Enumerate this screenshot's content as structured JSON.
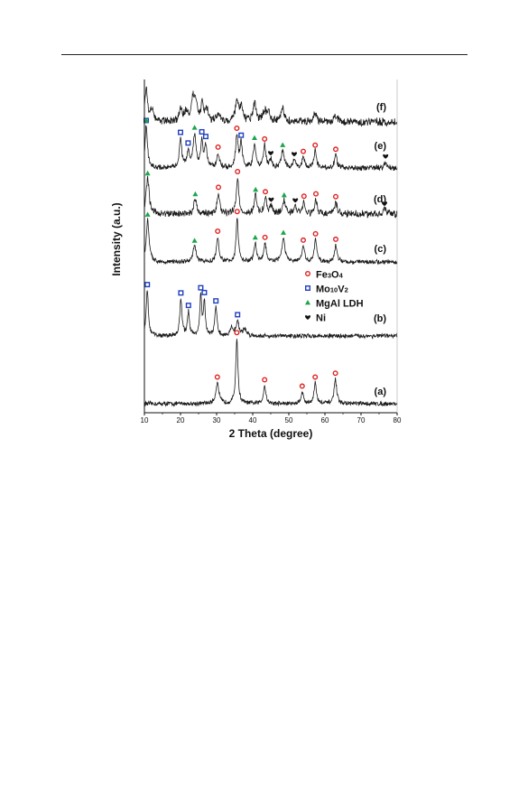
{
  "chart_data": {
    "type": "line",
    "xlabel": "2 Theta (degree)",
    "ylabel": "Intensity (a.u.)",
    "xlim": [
      10,
      80
    ],
    "xticks": [
      10,
      20,
      30,
      40,
      50,
      60,
      70,
      80
    ],
    "grid": false,
    "legend": {
      "placement": "right-middle",
      "entries": [
        {
          "key": "fe3o4",
          "parts": [
            [
              "Fe",
              ""
            ],
            [
              "3",
              "sub"
            ],
            [
              "O",
              ""
            ],
            [
              "4",
              "sub"
            ]
          ],
          "marker": "circle",
          "color": "#e02020"
        },
        {
          "key": "mo10v2",
          "parts": [
            [
              "Mo",
              ""
            ],
            [
              "10",
              "sub"
            ],
            [
              "V",
              ""
            ],
            [
              "2",
              "sub"
            ]
          ],
          "marker": "square",
          "color": "#1f3fbf"
        },
        {
          "key": "mgal",
          "parts": [
            [
              "MgAl LDH",
              ""
            ]
          ],
          "marker": "triangle",
          "color": "#1aa64a"
        },
        {
          "key": "ni",
          "parts": [
            [
              "Ni",
              ""
            ]
          ],
          "marker": "heart",
          "color": "#111111"
        }
      ]
    },
    "series": [
      {
        "name": "(a)",
        "noise": 1.5,
        "peaks": [
          [
            30.2,
            16,
            0.5
          ],
          [
            35.6,
            50,
            0.35
          ],
          [
            43.3,
            14,
            0.4
          ],
          [
            53.7,
            9,
            0.4
          ],
          [
            57.3,
            16,
            0.4
          ],
          [
            62.9,
            19,
            0.4
          ]
        ],
        "markers": [
          {
            "type": "fe3o4",
            "x": [
              30.2,
              35.6,
              43.3,
              53.7,
              57.3,
              62.9
            ]
          }
        ]
      },
      {
        "name": "(b)",
        "noise": 1.5,
        "peaks": [
          [
            10.8,
            35,
            0.35
          ],
          [
            20.1,
            28,
            0.35
          ],
          [
            22.2,
            18,
            0.35
          ],
          [
            25.6,
            30,
            0.3
          ],
          [
            26.6,
            26,
            0.3
          ],
          [
            29.8,
            22,
            0.35
          ],
          [
            34.2,
            6,
            0.5
          ],
          [
            35.8,
            11,
            0.45
          ],
          [
            37.8,
            5,
            0.6
          ]
        ],
        "markers": [
          {
            "type": "mo10v2",
            "x": [
              10.8,
              20.1,
              22.2,
              25.6,
              26.6,
              29.8,
              35.8
            ]
          }
        ]
      },
      {
        "name": "(c)",
        "noise": 1.5,
        "peaks": [
          [
            10.9,
            32,
            0.45
          ],
          [
            23.9,
            12,
            0.5
          ],
          [
            30.3,
            19,
            0.4
          ],
          [
            35.7,
            34,
            0.35
          ],
          [
            40.7,
            14,
            0.4
          ],
          [
            43.4,
            14,
            0.4
          ],
          [
            48.5,
            18,
            0.5
          ],
          [
            54.0,
            12,
            0.4
          ],
          [
            57.4,
            17,
            0.4
          ],
          [
            63.0,
            13,
            0.4
          ]
        ],
        "markers": [
          {
            "type": "mgal",
            "x": [
              10.9,
              23.9,
              40.7,
              48.5
            ]
          },
          {
            "type": "fe3o4",
            "x": [
              30.3,
              35.7,
              43.4,
              54.0,
              57.4,
              63.0
            ]
          }
        ]
      },
      {
        "name": "(d)",
        "noise": 2.3,
        "peaks": [
          [
            10.9,
            27,
            0.5
          ],
          [
            24.1,
            11,
            0.5
          ],
          [
            30.5,
            16,
            0.4
          ],
          [
            35.8,
            28,
            0.4
          ],
          [
            40.8,
            14,
            0.4
          ],
          [
            43.5,
            12,
            0.4
          ],
          [
            45.1,
            6,
            0.4
          ],
          [
            48.7,
            10,
            0.5
          ],
          [
            51.8,
            6,
            0.4
          ],
          [
            54.2,
            9,
            0.4
          ],
          [
            57.5,
            11,
            0.4
          ],
          [
            63.0,
            9,
            0.4
          ],
          [
            76.5,
            4,
            0.4
          ]
        ],
        "markers": [
          {
            "type": "mgal",
            "x": [
              10.9,
              24.1,
              40.8,
              48.7
            ]
          },
          {
            "type": "fe3o4",
            "x": [
              30.5,
              35.8,
              43.5,
              54.2,
              57.5,
              63.0
            ]
          },
          {
            "type": "ni",
            "x": [
              45.1,
              51.8,
              76.5
            ]
          }
        ]
      },
      {
        "name": "(e)",
        "noise": 1.8,
        "peaks": [
          [
            10.5,
            32,
            0.4
          ],
          [
            20.0,
            22,
            0.4
          ],
          [
            22.1,
            12,
            0.4
          ],
          [
            23.9,
            25,
            0.5
          ],
          [
            25.9,
            20,
            0.35
          ],
          [
            27.0,
            17,
            0.35
          ],
          [
            30.4,
            11,
            0.4
          ],
          [
            35.6,
            24,
            0.4
          ],
          [
            36.8,
            18,
            0.4
          ],
          [
            40.5,
            18,
            0.4
          ],
          [
            43.3,
            17,
            0.4
          ],
          [
            45.0,
            6,
            0.4
          ],
          [
            48.3,
            13,
            0.5
          ],
          [
            51.5,
            6,
            0.4
          ],
          [
            54.0,
            8,
            0.4
          ],
          [
            57.3,
            13,
            0.4
          ],
          [
            63.0,
            10,
            0.4
          ],
          [
            76.8,
            5,
            0.4
          ]
        ],
        "markers": [
          {
            "type": "mo10v2",
            "x": [
              10.5,
              20.0,
              22.1,
              25.9,
              27.0,
              36.8
            ]
          },
          {
            "type": "mgal",
            "x": [
              10.5,
              23.9,
              40.5,
              48.3
            ]
          },
          {
            "type": "fe3o4",
            "x": [
              30.4,
              35.6,
              43.3,
              54.0,
              57.3,
              63.0
            ]
          },
          {
            "type": "ni",
            "x": [
              45.0,
              51.5,
              76.8
            ]
          }
        ]
      },
      {
        "name": "(f)",
        "noise": 2.6,
        "peaks": [
          [
            10.5,
            26,
            0.4
          ],
          [
            12.0,
            10,
            0.6
          ],
          [
            20.0,
            10,
            0.5
          ],
          [
            21.5,
            7,
            0.5
          ],
          [
            23.5,
            18,
            0.5
          ],
          [
            24.3,
            12,
            0.5
          ],
          [
            26.0,
            13,
            0.4
          ],
          [
            27.2,
            10,
            0.5
          ],
          [
            30.5,
            6,
            0.5
          ],
          [
            35.6,
            15,
            0.5
          ],
          [
            36.8,
            11,
            0.5
          ],
          [
            40.5,
            14,
            0.5
          ],
          [
            43.3,
            9,
            0.5
          ],
          [
            44.5,
            6,
            0.5
          ],
          [
            48.3,
            10,
            0.5
          ],
          [
            57.3,
            7,
            0.5
          ],
          [
            63.0,
            5,
            0.5
          ]
        ],
        "markers": []
      }
    ]
  }
}
